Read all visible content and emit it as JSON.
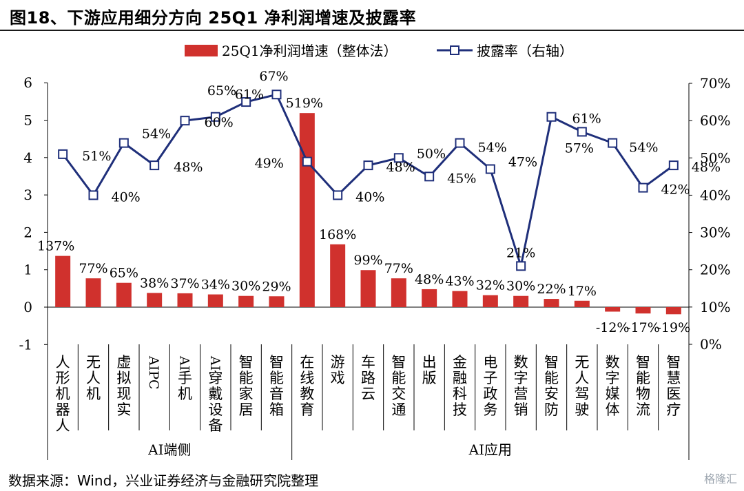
{
  "figure_title": "图18、下游应用细分方向 25Q1 净利润增速及披露率",
  "source": "数据来源：Wind，兴业证券经济与金融研究院整理",
  "watermark": "格隆汇",
  "colors": {
    "bar": "#d0312d",
    "line": "#1f2f7a",
    "marker_fill": "#ffffff"
  },
  "chart_data": {
    "type": "bar",
    "categories": [
      "人形机器人",
      "无人机",
      "虚拟现实",
      "AIPC",
      "AI手机",
      "AI穿戴设备",
      "智能家居",
      "智能音箱",
      "在线教育",
      "游戏",
      "车路云",
      "智能交通",
      "出版",
      "金融科技",
      "电子政务",
      "数字营销",
      "智能安防",
      "无人驾驶",
      "数字媒体",
      "智能物流",
      "智慧医疗"
    ],
    "category_display": [
      "人形机器人",
      "无人机",
      "虚拟现实",
      "AIPC",
      "AI手机",
      "AI穿戴设备",
      "智能家居",
      "智能音箱",
      "在线教育",
      "游戏",
      "车路云",
      "智能交通",
      "出版",
      "金融科技",
      "电子政务",
      "数字营销",
      "智能安防",
      "无人驾驶",
      "数字媒体",
      "智能物流",
      "智慧医疗"
    ],
    "groups": [
      {
        "label": "AI端侧",
        "start": 0,
        "end": 7
      },
      {
        "label": "AI应用",
        "start": 8,
        "end": 20
      }
    ],
    "series": [
      {
        "name": "25Q1净利润增速（整体法）",
        "type": "bar",
        "axis": "left",
        "values": [
          1.37,
          0.77,
          0.65,
          0.38,
          0.37,
          0.34,
          0.3,
          0.29,
          5.19,
          1.68,
          0.99,
          0.77,
          0.48,
          0.43,
          0.32,
          0.3,
          0.22,
          0.17,
          -0.12,
          -0.17,
          -0.19
        ],
        "labels": [
          "137%",
          "77%",
          "65%",
          "38%",
          "37%",
          "34%",
          "30%",
          "29%",
          "519%",
          "168%",
          "99%",
          "77%",
          "48%",
          "43%",
          "32%",
          "30%",
          "22%",
          "17%",
          "-12%",
          "-17%",
          "-19%"
        ]
      },
      {
        "name": "披露率（右轴）",
        "type": "line",
        "axis": "right",
        "values": [
          51,
          40,
          54,
          48,
          60,
          61,
          65,
          67,
          49,
          40,
          48,
          50,
          45,
          54,
          47,
          21,
          61,
          57,
          54,
          42,
          48
        ],
        "labels": [
          "51%",
          "40%",
          "54%",
          "48%",
          "60%",
          "61%",
          "65%",
          "67%",
          "49%",
          "40%",
          "48%",
          "50%",
          "45%",
          "54%",
          "47%",
          "21%",
          "61%",
          "57%",
          "54%",
          "42%",
          "48%"
        ]
      }
    ],
    "left_axis": {
      "ylim": [
        -1,
        6
      ],
      "ticks": [
        "-1",
        "0",
        "1",
        "2",
        "3",
        "4",
        "5",
        "6"
      ]
    },
    "right_axis": {
      "ylim": [
        0,
        70
      ],
      "ticks": [
        "0%",
        "10%",
        "20%",
        "30%",
        "40%",
        "50%",
        "60%",
        "70%"
      ]
    },
    "legend": [
      "25Q1净利润增速（整体法）",
      "披露率（右轴）"
    ],
    "grid": false,
    "legend_position": "top"
  }
}
